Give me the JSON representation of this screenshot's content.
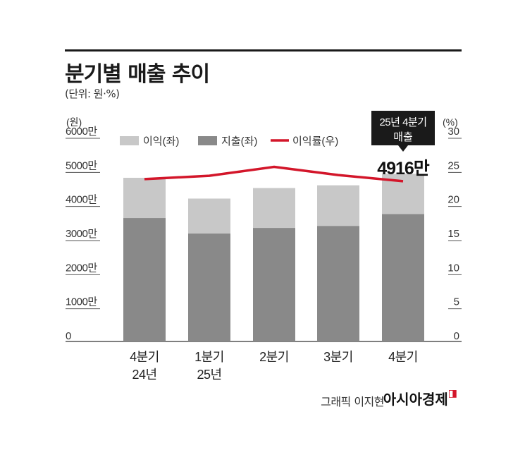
{
  "header": {
    "title": "분기별 매출 추이",
    "unit_note": "(단위: 원·%)"
  },
  "footer": {
    "credit": "그래픽 이지현",
    "brand": "아시아경제"
  },
  "colors": {
    "profit": "#c8c8c8",
    "expense": "#898989",
    "margin_line": "#d3162a",
    "callout_bg": "#1a1a1a"
  },
  "chart_data": {
    "type": "bar",
    "stacked": true,
    "categories": [
      "4분기\n24년",
      "1분기\n25년",
      "2분기",
      "3분기",
      "4분기"
    ],
    "series": [
      {
        "name": "지출(좌)",
        "axis": "left",
        "values": [
          3620,
          3170,
          3330,
          3390,
          3740
        ]
      },
      {
        "name": "이익(좌)",
        "axis": "left",
        "values": [
          1180,
          1020,
          1170,
          1190,
          1176
        ]
      },
      {
        "name": "이익률(우)",
        "axis": "right",
        "type": "line",
        "values": [
          23.8,
          24.3,
          25.6,
          24.4,
          23.5
        ]
      }
    ],
    "y_left": {
      "unit_label": "(원)",
      "ylim": [
        0,
        6000
      ],
      "ticks": [
        "0",
        "1000만",
        "2000만",
        "3000만",
        "4000만",
        "5000만",
        "6000만"
      ]
    },
    "y_right": {
      "unit_label": "(%)",
      "ylim": [
        0,
        30
      ],
      "ticks": [
        "0",
        "5",
        "10",
        "15",
        "20",
        "25",
        "30"
      ]
    },
    "legend": {
      "placement": "top",
      "items": [
        "이익(좌)",
        "지출(좌)",
        "이익률(우)"
      ]
    },
    "annotation": {
      "category_index": 4,
      "box_text": [
        "25년 4분기",
        "매출"
      ],
      "value_text": "4916만"
    },
    "grid": false
  }
}
